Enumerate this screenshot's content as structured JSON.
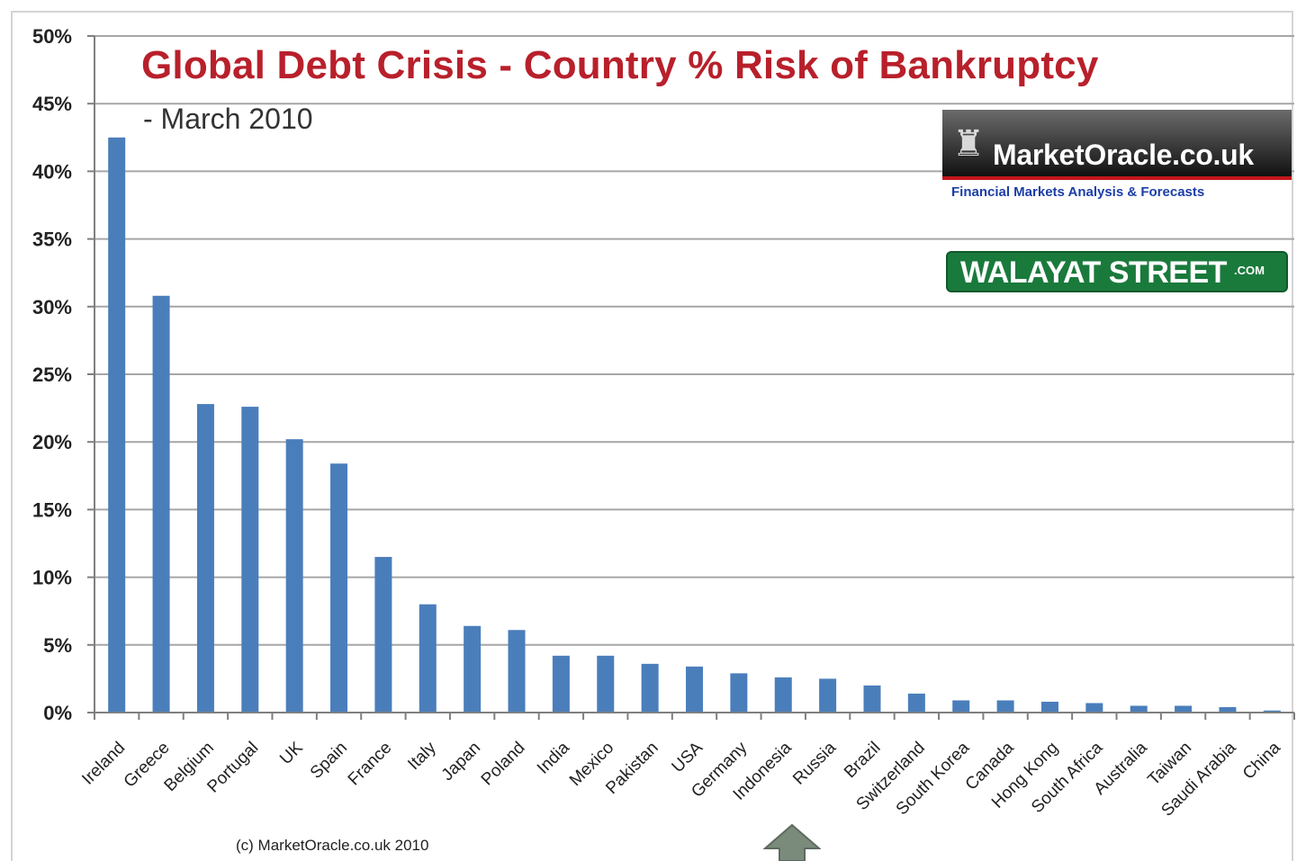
{
  "chart_data": {
    "type": "bar",
    "title": "Global Debt Crisis - Country % Risk of Bankruptcy",
    "subtitle": "- March 2010",
    "categories": [
      "Ireland",
      "Greece",
      "Belgium",
      "Portugal",
      "UK",
      "Spain",
      "France",
      "Italy",
      "Japan",
      "Poland",
      "India",
      "Mexico",
      "Pakistan",
      "USA",
      "Germany",
      "Indonesia",
      "Russia",
      "Brazil",
      "Switzerland",
      "South Korea",
      "Canada",
      "Hong Kong",
      "South Africa",
      "Australia",
      "Taiwan",
      "Saudi Arabia",
      "China"
    ],
    "values": [
      42.5,
      30.8,
      22.8,
      22.6,
      20.2,
      18.4,
      11.5,
      8.0,
      6.4,
      6.1,
      4.2,
      4.2,
      3.6,
      3.4,
      2.9,
      2.6,
      2.5,
      2.0,
      1.4,
      0.9,
      0.9,
      0.8,
      0.7,
      0.5,
      0.5,
      0.4,
      0.15
    ],
    "ylim": [
      0,
      50
    ],
    "yticks": [
      0,
      5,
      10,
      15,
      20,
      25,
      30,
      35,
      40,
      45,
      50
    ],
    "ytick_labels": [
      "0%",
      "5%",
      "10%",
      "15%",
      "20%",
      "25%",
      "30%",
      "35%",
      "40%",
      "45%",
      "50%"
    ],
    "xlabel": "",
    "ylabel": "",
    "grid": true,
    "legend": "none",
    "bar_color": "#4a7ebb",
    "grid_color": "#a6a6a6"
  },
  "copyright": "(c) MarketOracle.co.uk 2010",
  "logos": {
    "market_oracle": "MarketOracle.co.uk",
    "market_oracle_tagline": "Financial Markets Analysis & Forecasts",
    "walayat": "WALAYAT STREET",
    "walayat_suffix": ".COM"
  },
  "icons": {
    "logo_figure": "thinker-statue-icon",
    "pointer": "up-arrow-icon"
  },
  "colors": {
    "title": "#b8202b",
    "arrow": "#7a8b7c",
    "logo_green": "#1a7a3c",
    "logo_red": "#c4161c"
  }
}
